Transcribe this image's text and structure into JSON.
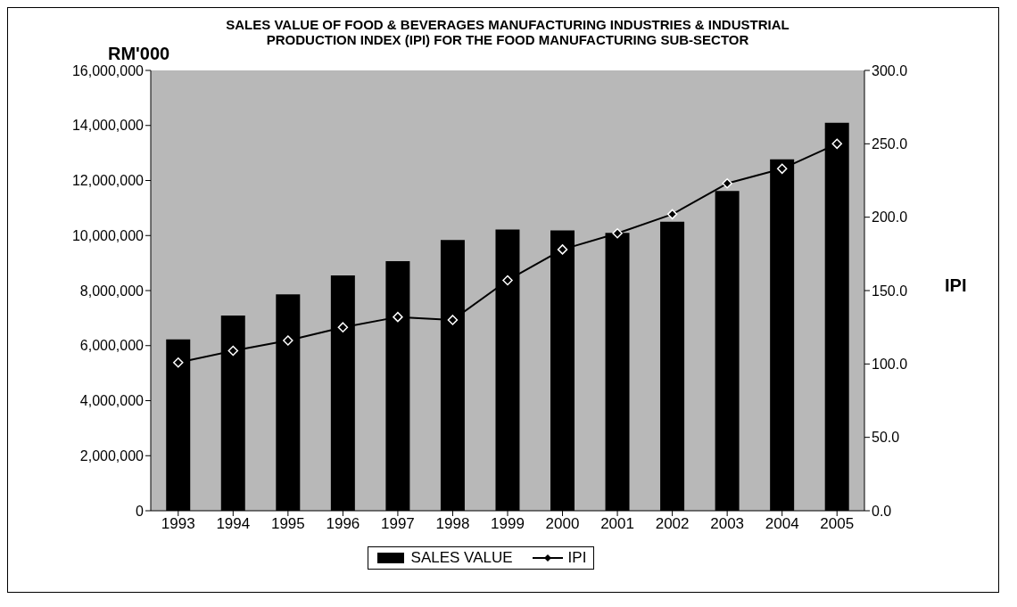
{
  "chart_data": {
    "type": "bar",
    "title": "SALES VALUE OF FOOD & BEVERAGES MANUFACTURING INDUSTRIES & INDUSTRIAL PRODUCTION INDEX (IPI) FOR THE FOOD MANUFACTURING SUB-SECTOR",
    "ylabel": "RM'000",
    "y2label": "IPI",
    "categories": [
      "1993",
      "1994",
      "1995",
      "1996",
      "1997",
      "1998",
      "1999",
      "2000",
      "2001",
      "2002",
      "2003",
      "2004",
      "2005"
    ],
    "series": [
      {
        "name": "SALES VALUE",
        "color": "#000000",
        "values": [
          6230000,
          7090000,
          7860000,
          8550000,
          9070000,
          9840000,
          10220000,
          10190000,
          10100000,
          10500000,
          11620000,
          12770000,
          14100000
        ]
      },
      {
        "name": "IPI",
        "type": "line",
        "axis": "y2",
        "color": "#000000",
        "marker": "diamond",
        "values": [
          101,
          109,
          116,
          125,
          132,
          130,
          157,
          178,
          189,
          202,
          223,
          233,
          250
        ]
      }
    ],
    "ylim": [
      0,
      16000000
    ],
    "yticks": [
      {
        "value": 0,
        "label": "0"
      },
      {
        "value": 2000000,
        "label": "2,000,000"
      },
      {
        "value": 4000000,
        "label": "4,000,000"
      },
      {
        "value": 6000000,
        "label": "6,000,000"
      },
      {
        "value": 8000000,
        "label": "8,000,000"
      },
      {
        "value": 10000000,
        "label": "10,000,000"
      },
      {
        "value": 12000000,
        "label": "12,000,000"
      },
      {
        "value": 14000000,
        "label": "14,000,000"
      },
      {
        "value": 16000000,
        "label": "16,000,000"
      }
    ],
    "y2lim": [
      0,
      300
    ],
    "y2ticks": [
      {
        "value": 0,
        "label": "0.0"
      },
      {
        "value": 50,
        "label": "50.0"
      },
      {
        "value": 100,
        "label": "100.0"
      },
      {
        "value": 150,
        "label": "150.0"
      },
      {
        "value": 200,
        "label": "200.0"
      },
      {
        "value": 250,
        "label": "250.0"
      },
      {
        "value": 300,
        "label": "300.0"
      }
    ],
    "legend": "bottom"
  }
}
